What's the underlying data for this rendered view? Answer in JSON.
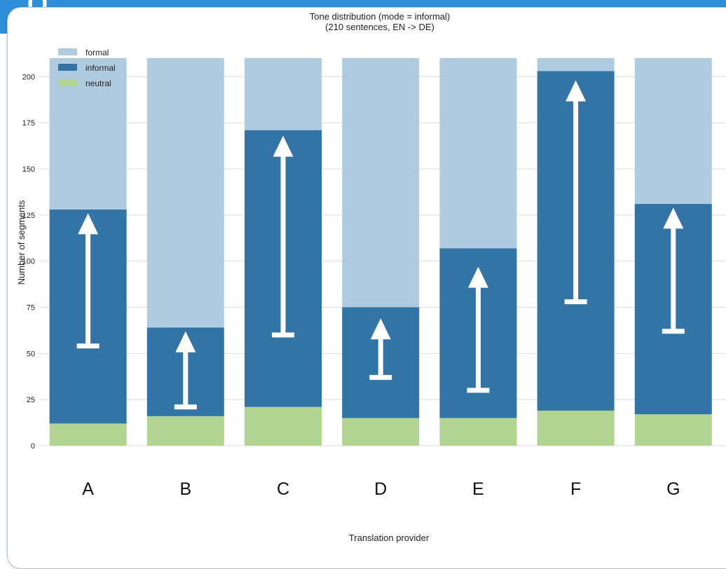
{
  "colors": {
    "formal": "#aecbdf",
    "informal": "#3274a5",
    "neutral": "#b2d493",
    "grid": "#dddddd",
    "arrow": "#ffffff"
  },
  "chart_data": {
    "type": "bar",
    "stacked": true,
    "title": "Tone distribution (mode = informal)",
    "subtitle": "(210 sentences, EN -> DE)",
    "xlabel": "Translation provider",
    "ylabel": "Number of segments",
    "ylim": [
      0,
      210
    ],
    "yticks": [
      "0",
      "25",
      "50",
      "75",
      "100",
      "125",
      "150",
      "175",
      "200"
    ],
    "categories": [
      "A",
      "B",
      "C",
      "D",
      "E",
      "F",
      "G"
    ],
    "series": [
      {
        "name": "neutral",
        "values": [
          12,
          16,
          21,
          15,
          15,
          19,
          17
        ]
      },
      {
        "name": "informal",
        "values": [
          116,
          48,
          150,
          60,
          92,
          184,
          114
        ]
      },
      {
        "name": "formal",
        "values": [
          82,
          146,
          39,
          135,
          103,
          7,
          79
        ]
      }
    ],
    "legend": {
      "position": "top-left",
      "order": [
        "formal",
        "informal",
        "neutral"
      ]
    },
    "annotations": {
      "type": "arrows-up",
      "from": [
        54,
        21,
        60,
        37,
        30,
        78,
        62
      ],
      "to": [
        126,
        62,
        168,
        69,
        97,
        198,
        129
      ]
    },
    "grid": true
  }
}
